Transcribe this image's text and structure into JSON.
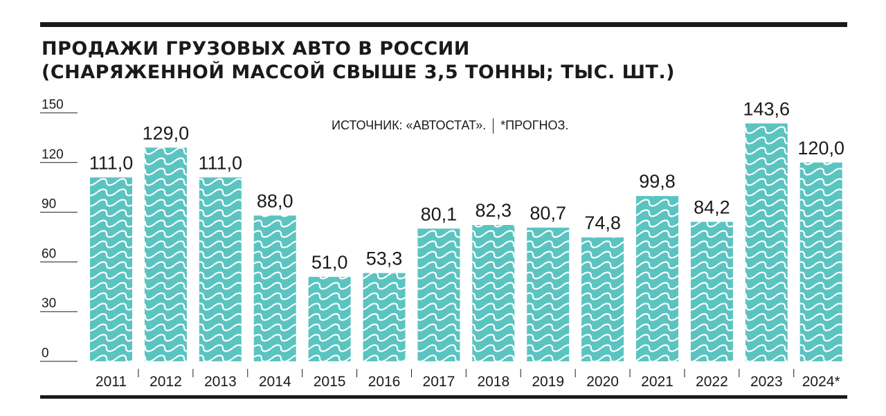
{
  "title_line1": "ПРОДАЖИ ГРУЗОВЫХ АВТО В РОССИИ",
  "title_line2": "(СНАРЯЖЕННОЙ МАССОЙ СВЫШЕ 3,5 ТОННЫ; ТЫС. ШТ.)",
  "source_text": "ИСТОЧНИК: «АВТОСТАТ».",
  "forecast_note": "*ПРОГНОЗ.",
  "colors": {
    "bar": "#5bc4c1",
    "wave": "#ffffff",
    "text": "#1a1a1a",
    "grid": "#1a1a1a"
  },
  "chart_data": {
    "type": "bar",
    "categories": [
      "2011",
      "2012",
      "2013",
      "2014",
      "2015",
      "2016",
      "2017",
      "2018",
      "2019",
      "2020",
      "2021",
      "2022",
      "2023",
      "2024*"
    ],
    "values": [
      111.0,
      129.0,
      111.0,
      88.0,
      51.0,
      53.3,
      80.1,
      82.3,
      80.7,
      74.8,
      99.8,
      84.2,
      143.6,
      120.0
    ],
    "value_labels": [
      "111,0",
      "129,0",
      "111,0",
      "88,0",
      "51,0",
      "53,3",
      "80,1",
      "82,3",
      "80,7",
      "74,8",
      "99,8",
      "84,2",
      "143,6",
      "120,0"
    ],
    "yticks": [
      0,
      30,
      60,
      90,
      120,
      150
    ],
    "ylim": [
      0,
      150
    ],
    "grid": true
  }
}
